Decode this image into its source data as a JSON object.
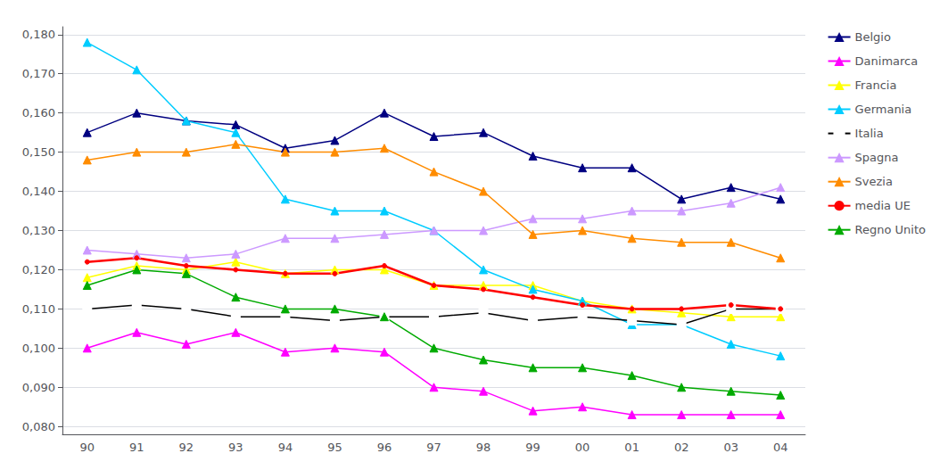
{
  "chart_data": {
    "type": "line",
    "categories": [
      "90",
      "91",
      "92",
      "93",
      "94",
      "95",
      "96",
      "97",
      "98",
      "99",
      "00",
      "01",
      "02",
      "03",
      "04"
    ],
    "series": [
      {
        "name": "Belgio",
        "color": "#000080",
        "marker": "triangle",
        "values": [
          0.155,
          0.16,
          0.158,
          0.157,
          0.151,
          0.153,
          0.16,
          0.154,
          0.155,
          0.149,
          0.146,
          0.146,
          0.138,
          0.141,
          0.138
        ]
      },
      {
        "name": "Danimarca",
        "color": "#ff00ff",
        "marker": "triangle",
        "values": [
          0.1,
          0.104,
          0.101,
          0.104,
          0.099,
          0.1,
          0.099,
          0.09,
          0.089,
          0.084,
          0.085,
          0.083,
          0.083,
          0.083,
          0.083
        ]
      },
      {
        "name": "Francia",
        "color": "#ffff00",
        "marker": "triangle",
        "values": [
          0.118,
          0.121,
          0.12,
          0.122,
          0.119,
          0.12,
          0.12,
          0.116,
          0.116,
          0.116,
          0.112,
          0.11,
          0.109,
          0.108,
          0.108
        ]
      },
      {
        "name": "Germania",
        "color": "#00ccff",
        "marker": "triangle",
        "values": [
          0.178,
          0.171,
          0.158,
          0.155,
          0.138,
          0.135,
          0.135,
          0.13,
          0.12,
          0.115,
          0.112,
          0.106,
          0.106,
          0.101,
          0.098
        ]
      },
      {
        "name": "Italia",
        "color": "#000000",
        "marker": "open_square",
        "values": [
          0.11,
          0.111,
          0.11,
          0.108,
          0.108,
          0.107,
          0.108,
          0.108,
          0.109,
          0.107,
          0.108,
          0.107,
          0.106,
          0.11,
          0.11
        ]
      },
      {
        "name": "Spagna",
        "color": "#cc99ff",
        "marker": "triangle",
        "values": [
          0.125,
          0.124,
          0.123,
          0.124,
          0.128,
          0.128,
          0.129,
          0.13,
          0.13,
          0.133,
          0.133,
          0.135,
          0.135,
          0.137,
          0.141
        ]
      },
      {
        "name": "Svezia",
        "color": "#ff8c00",
        "marker": "triangle",
        "values": [
          0.148,
          0.15,
          0.15,
          0.152,
          0.15,
          0.15,
          0.151,
          0.145,
          0.14,
          0.129,
          0.13,
          0.128,
          0.127,
          0.127,
          0.123
        ]
      },
      {
        "name": "media UE",
        "color": "#ff0000",
        "marker": "circle",
        "values": [
          0.122,
          0.123,
          0.121,
          0.12,
          0.119,
          0.119,
          0.121,
          0.116,
          0.115,
          0.113,
          0.111,
          0.11,
          0.11,
          0.111,
          0.11
        ]
      },
      {
        "name": "Regno Unito",
        "color": "#00aa00",
        "marker": "triangle",
        "values": [
          0.116,
          0.12,
          0.119,
          0.113,
          0.11,
          0.11,
          0.108,
          0.1,
          0.097,
          0.095,
          0.095,
          0.093,
          0.09,
          0.089,
          0.088
        ]
      }
    ],
    "ylim": [
      0.078,
      0.182
    ],
    "yticks": [
      {
        "value": 0.08,
        "label": "0,080"
      },
      {
        "value": 0.09,
        "label": "0,090"
      },
      {
        "value": 0.1,
        "label": "0,100"
      },
      {
        "value": 0.11,
        "label": "0,110"
      },
      {
        "value": 0.12,
        "label": "0,120"
      },
      {
        "value": 0.13,
        "label": "0,130"
      },
      {
        "value": 0.14,
        "label": "0,140"
      },
      {
        "value": 0.15,
        "label": "0,150"
      },
      {
        "value": 0.16,
        "label": "0,160"
      },
      {
        "value": 0.17,
        "label": "0,170"
      },
      {
        "value": 0.18,
        "label": "0,180"
      }
    ],
    "grid": true,
    "legend": "right"
  }
}
